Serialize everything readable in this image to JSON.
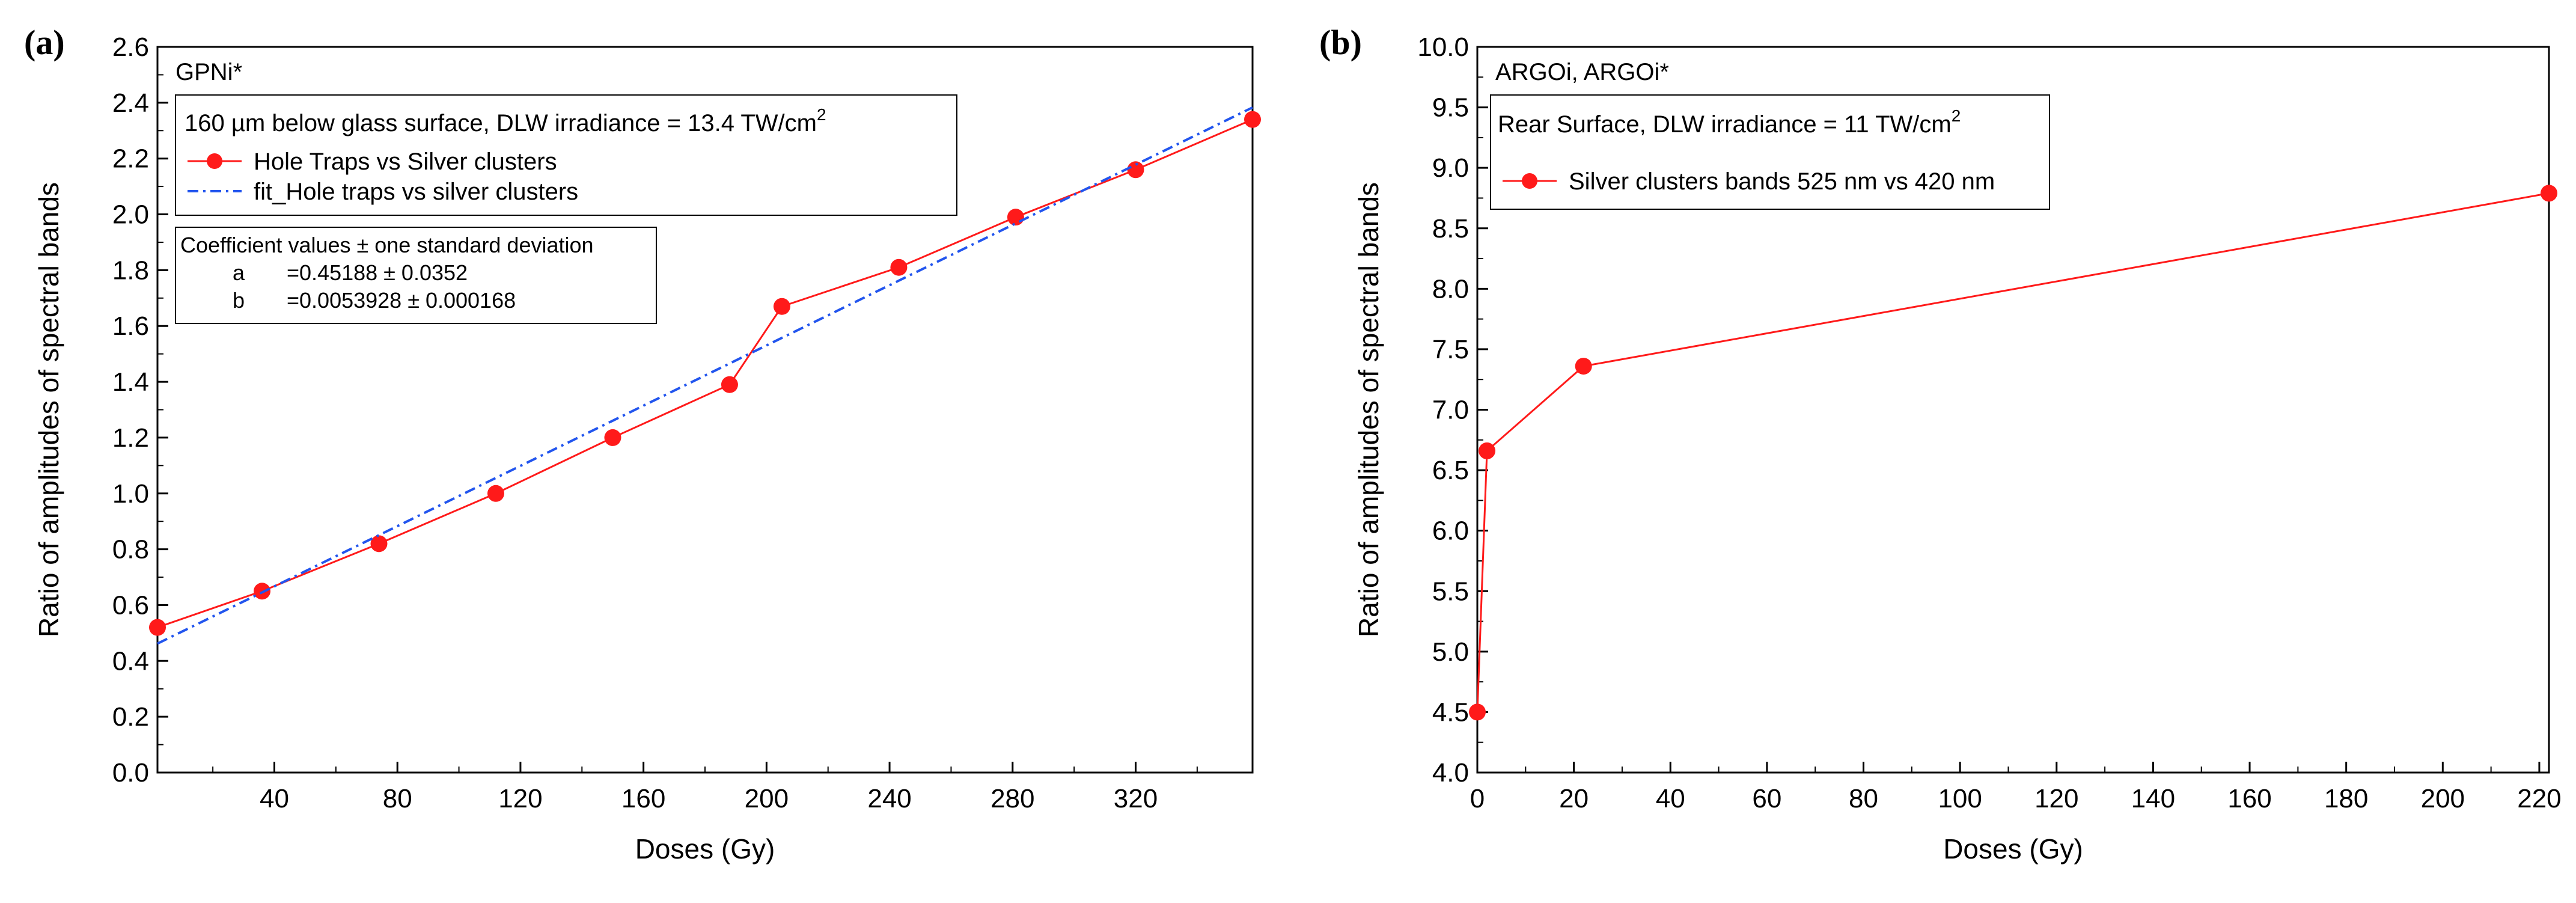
{
  "colors": {
    "series_red": "#ff1a1a",
    "fit_blue": "#2255ee",
    "axis": "#000000",
    "legend_border": "#000000"
  },
  "chart_data": [
    {
      "type": "line",
      "panel_label": "(a)",
      "title": "GPNi*",
      "xlabel": "Doses (Gy)",
      "ylabel": "Ratio of amplitudes of spectral bands",
      "xlim": [
        2,
        358
      ],
      "ylim": [
        0.0,
        2.6
      ],
      "xticks": [
        40,
        80,
        120,
        160,
        200,
        240,
        280,
        320
      ],
      "xminor": [
        20,
        60,
        100,
        140,
        180,
        220,
        260,
        300,
        340
      ],
      "yticks": [
        0.0,
        0.2,
        0.4,
        0.6,
        0.8,
        1.0,
        1.2,
        1.4,
        1.6,
        1.8,
        2.0,
        2.2,
        2.4,
        2.6
      ],
      "ytick_labels": [
        "0.0",
        "0.2",
        "0.4",
        "0.6",
        "0.8",
        "1.0",
        "1.2",
        "1.4",
        "1.6",
        "1.8",
        "2.0",
        "2.2",
        "2.4",
        "2.6"
      ],
      "legend_header": "160 µm below glass surface, DLW irradiance = 13.4 TW/cm",
      "legend_header_sup": "2",
      "series": [
        {
          "name": "Hole Traps vs Silver clusters",
          "style": "line-marker",
          "x": [
            2,
            36,
            74,
            112,
            150,
            188,
            205,
            243,
            281,
            320,
            358
          ],
          "y": [
            0.52,
            0.65,
            0.82,
            1.0,
            1.2,
            1.39,
            1.67,
            1.81,
            1.99,
            2.16,
            2.34
          ]
        },
        {
          "name": "fit_Hole traps vs silver clusters",
          "style": "dash-dot",
          "x": [
            2,
            358
          ],
          "y": [
            0.462,
            2.383
          ]
        }
      ],
      "fit_box": {
        "header": "Coefficient values ± one standard deviation",
        "rows": [
          {
            "name": "a",
            "value": "=0.45188 ± 0.0352"
          },
          {
            "name": "b",
            "value": "=0.0053928 ± 0.000168"
          }
        ]
      }
    },
    {
      "type": "line",
      "panel_label": "(b)",
      "title": "ARGOi, ARGOi*",
      "xlabel": "Doses (Gy)",
      "ylabel": "Ratio of amplitudes of spectral bands",
      "xlim": [
        0,
        222
      ],
      "ylim": [
        4.0,
        10.0
      ],
      "xticks": [
        0,
        20,
        40,
        60,
        80,
        100,
        120,
        140,
        160,
        180,
        200,
        220
      ],
      "xminor": [
        10,
        30,
        50,
        70,
        90,
        110,
        130,
        150,
        170,
        190,
        210
      ],
      "yticks": [
        4.0,
        4.5,
        5.0,
        5.5,
        6.0,
        6.5,
        7.0,
        7.5,
        8.0,
        8.5,
        9.0,
        9.5,
        10.0
      ],
      "ytick_labels": [
        "4.0",
        "4.5",
        "5.0",
        "5.5",
        "6.0",
        "6.5",
        "7.0",
        "7.5",
        "8.0",
        "8.5",
        "9.0",
        "9.5",
        "10.0"
      ],
      "legend_header": "Rear Surface, DLW irradiance = 11 TW/cm",
      "legend_header_sup": "2",
      "series": [
        {
          "name": "Silver clusters bands 525 nm vs 420 nm",
          "style": "line-marker",
          "x": [
            0,
            2,
            22,
            222
          ],
          "y": [
            4.5,
            6.66,
            7.36,
            8.79
          ]
        }
      ]
    }
  ]
}
